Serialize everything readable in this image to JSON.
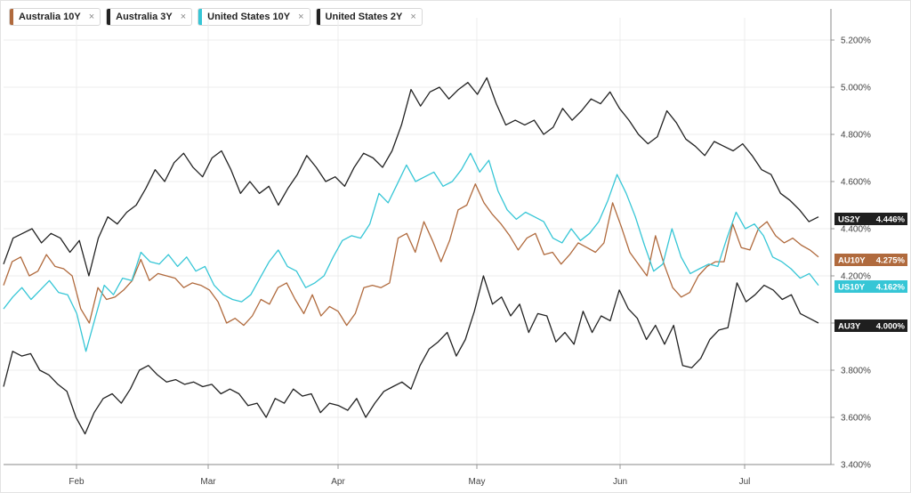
{
  "legend": [
    {
      "label": "Australia 10Y",
      "close": "×",
      "color": "#b06a3d"
    },
    {
      "label": "Australia 3Y",
      "close": "×",
      "color": "#222222"
    },
    {
      "label": "United States 10Y",
      "close": "×",
      "color": "#36c6d6"
    },
    {
      "label": "United States 2Y",
      "close": "×",
      "color": "#222222"
    }
  ],
  "chart_data": {
    "type": "line",
    "title": "",
    "xlabel": "",
    "ylabel": "",
    "ylim": [
      3.4,
      5.3
    ],
    "x_ticks": [
      "Feb",
      "Mar",
      "Apr",
      "May",
      "Jun",
      "Jul"
    ],
    "y_ticks": [
      "3.400%",
      "3.600%",
      "3.800%",
      "4.000%",
      "4.200%",
      "4.400%",
      "4.600%",
      "4.800%",
      "5.000%",
      "5.200%"
    ],
    "y_tick_values": [
      3.4,
      3.6,
      3.8,
      4.0,
      4.2,
      4.4,
      4.6,
      4.8,
      5.0,
      5.2
    ],
    "grid": true,
    "legend_position": "top-left",
    "series": [
      {
        "name": "Australia 10Y",
        "color": "#b06a3d",
        "tag": "AU10Y",
        "last": "4.275%",
        "values": [
          4.16,
          4.26,
          4.28,
          4.2,
          4.22,
          4.29,
          4.24,
          4.23,
          4.2,
          4.06,
          4.0,
          4.15,
          4.1,
          4.11,
          4.14,
          4.18,
          4.27,
          4.18,
          4.21,
          4.2,
          4.19,
          4.15,
          4.17,
          4.16,
          4.14,
          4.09,
          4.0,
          4.02,
          3.99,
          4.03,
          4.1,
          4.08,
          4.15,
          4.17,
          4.1,
          4.04,
          4.12,
          4.03,
          4.07,
          4.05,
          3.99,
          4.04,
          4.15,
          4.16,
          4.15,
          4.17,
          4.36,
          4.38,
          4.3,
          4.43,
          4.35,
          4.26,
          4.35,
          4.48,
          4.5,
          4.59,
          4.51,
          4.46,
          4.42,
          4.37,
          4.31,
          4.36,
          4.38,
          4.29,
          4.3,
          4.25,
          4.29,
          4.34,
          4.32,
          4.3,
          4.34,
          4.51,
          4.41,
          4.3,
          4.25,
          4.2,
          4.37,
          4.25,
          4.15,
          4.11,
          4.13,
          4.2,
          4.24,
          4.26,
          4.26,
          4.42,
          4.32,
          4.31,
          4.4,
          4.43,
          4.37,
          4.34,
          4.36,
          4.33,
          4.31,
          4.28
        ]
      },
      {
        "name": "Australia 3Y",
        "color": "#222222",
        "tag": "AU3Y",
        "last": "4.000%",
        "values": [
          3.73,
          3.88,
          3.86,
          3.87,
          3.8,
          3.78,
          3.74,
          3.71,
          3.6,
          3.53,
          3.62,
          3.68,
          3.7,
          3.66,
          3.72,
          3.8,
          3.82,
          3.78,
          3.75,
          3.76,
          3.74,
          3.75,
          3.73,
          3.74,
          3.7,
          3.72,
          3.7,
          3.65,
          3.66,
          3.6,
          3.68,
          3.66,
          3.72,
          3.69,
          3.7,
          3.62,
          3.66,
          3.65,
          3.63,
          3.68,
          3.6,
          3.66,
          3.71,
          3.73,
          3.75,
          3.72,
          3.82,
          3.89,
          3.92,
          3.96,
          3.86,
          3.93,
          4.05,
          4.2,
          4.08,
          4.11,
          4.03,
          4.08,
          3.96,
          4.04,
          4.03,
          3.92,
          3.96,
          3.91,
          4.05,
          3.96,
          4.03,
          4.01,
          4.14,
          4.06,
          4.02,
          3.93,
          3.99,
          3.91,
          3.99,
          3.82,
          3.81,
          3.85,
          3.93,
          3.97,
          3.98,
          4.17,
          4.09,
          4.12,
          4.16,
          4.14,
          4.1,
          4.12,
          4.04,
          4.02,
          4.0
        ]
      },
      {
        "name": "United States 10Y",
        "color": "#36c6d6",
        "tag": "US10Y",
        "last": "4.162%",
        "values": [
          4.06,
          4.11,
          4.15,
          4.1,
          4.14,
          4.18,
          4.13,
          4.12,
          4.04,
          3.88,
          4.02,
          4.16,
          4.12,
          4.19,
          4.18,
          4.3,
          4.26,
          4.25,
          4.29,
          4.24,
          4.28,
          4.22,
          4.24,
          4.16,
          4.12,
          4.1,
          4.09,
          4.12,
          4.19,
          4.26,
          4.31,
          4.24,
          4.22,
          4.15,
          4.17,
          4.2,
          4.28,
          4.35,
          4.37,
          4.36,
          4.42,
          4.55,
          4.51,
          4.59,
          4.67,
          4.6,
          4.62,
          4.64,
          4.58,
          4.6,
          4.65,
          4.72,
          4.64,
          4.69,
          4.56,
          4.48,
          4.44,
          4.47,
          4.45,
          4.43,
          4.36,
          4.34,
          4.4,
          4.35,
          4.38,
          4.43,
          4.52,
          4.63,
          4.55,
          4.45,
          4.33,
          4.22,
          4.25,
          4.4,
          4.28,
          4.21,
          4.23,
          4.25,
          4.24,
          4.36,
          4.47,
          4.4,
          4.42,
          4.37,
          4.28,
          4.26,
          4.23,
          4.19,
          4.21,
          4.16
        ]
      },
      {
        "name": "United States 2Y",
        "color": "#222222",
        "tag": "US2Y",
        "last": "4.446%",
        "values": [
          4.25,
          4.36,
          4.38,
          4.4,
          4.34,
          4.38,
          4.36,
          4.3,
          4.35,
          4.2,
          4.36,
          4.45,
          4.42,
          4.47,
          4.5,
          4.57,
          4.65,
          4.6,
          4.68,
          4.72,
          4.66,
          4.62,
          4.7,
          4.73,
          4.65,
          4.55,
          4.6,
          4.55,
          4.58,
          4.5,
          4.57,
          4.63,
          4.71,
          4.66,
          4.6,
          4.62,
          4.58,
          4.66,
          4.72,
          4.7,
          4.66,
          4.73,
          4.84,
          4.99,
          4.92,
          4.98,
          5.0,
          4.95,
          4.99,
          5.02,
          4.97,
          5.04,
          4.93,
          4.84,
          4.86,
          4.84,
          4.86,
          4.8,
          4.83,
          4.91,
          4.86,
          4.9,
          4.95,
          4.93,
          4.98,
          4.91,
          4.86,
          4.8,
          4.76,
          4.79,
          4.9,
          4.85,
          4.78,
          4.75,
          4.71,
          4.77,
          4.75,
          4.73,
          4.76,
          4.71,
          4.65,
          4.63,
          4.55,
          4.52,
          4.48,
          4.43,
          4.45
        ]
      }
    ]
  }
}
